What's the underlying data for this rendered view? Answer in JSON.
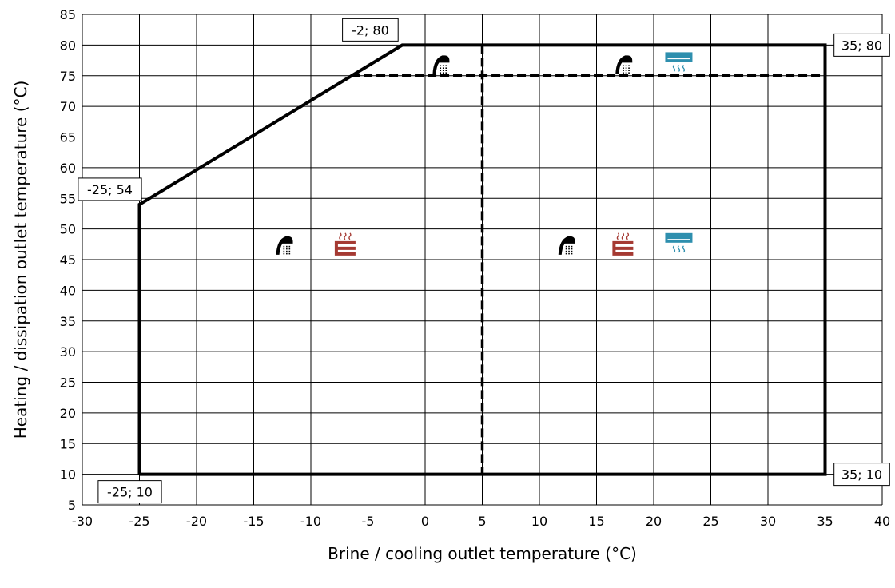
{
  "chart_data": {
    "type": "line",
    "title": "",
    "xlabel": "Brine / cooling outlet temperature (°C)",
    "ylabel": "Heating / dissipation outlet temperature (°C)",
    "xlim": [
      -30,
      40
    ],
    "ylim": [
      5,
      85
    ],
    "x_ticks": [
      "-30",
      "-25",
      "-20",
      "-15",
      "-10",
      "-5",
      "0",
      "5",
      "10",
      "15",
      "20",
      "25",
      "30",
      "35",
      "40"
    ],
    "y_ticks": [
      "5",
      "10",
      "15",
      "20",
      "25",
      "30",
      "35",
      "40",
      "45",
      "50",
      "55",
      "60",
      "65",
      "70",
      "75",
      "80",
      "85"
    ],
    "grid": true,
    "envelope": [
      [
        -25,
        10
      ],
      [
        -25,
        54
      ],
      [
        -2,
        80
      ],
      [
        35,
        80
      ],
      [
        35,
        10
      ],
      [
        -25,
        10
      ]
    ],
    "dashed_lines": [
      [
        [
          -6.5,
          75
        ],
        [
          35,
          75
        ]
      ],
      [
        [
          5,
          80
        ],
        [
          5,
          10
        ]
      ]
    ],
    "corner_labels": [
      {
        "text": "-25; 10",
        "x": -25,
        "y": 10
      },
      {
        "text": "-25; 54",
        "x": -25,
        "y": 54
      },
      {
        "text": "-2; 80",
        "x": -2,
        "y": 80
      },
      {
        "text": "35; 80",
        "x": 35,
        "y": 80
      },
      {
        "text": "35; 10",
        "x": 35,
        "y": 10
      }
    ],
    "icons": [
      {
        "name": "shower-icon",
        "x": 1.5,
        "y": 77
      },
      {
        "name": "shower-icon",
        "x": 17.5,
        "y": 77
      },
      {
        "name": "cooling-icon",
        "x": 22.2,
        "y": 77
      },
      {
        "name": "shower-icon",
        "x": -12.2,
        "y": 47.5
      },
      {
        "name": "floor-heating-icon",
        "x": -7,
        "y": 47.5
      },
      {
        "name": "shower-icon",
        "x": 12.5,
        "y": 47.5
      },
      {
        "name": "floor-heating-icon",
        "x": 17.3,
        "y": 47.5
      },
      {
        "name": "cooling-icon",
        "x": 22.2,
        "y": 47.5
      }
    ],
    "colors": {
      "floor_heating": "#a53a33",
      "cooling": "#2e8fae",
      "shower": "#000000"
    }
  }
}
